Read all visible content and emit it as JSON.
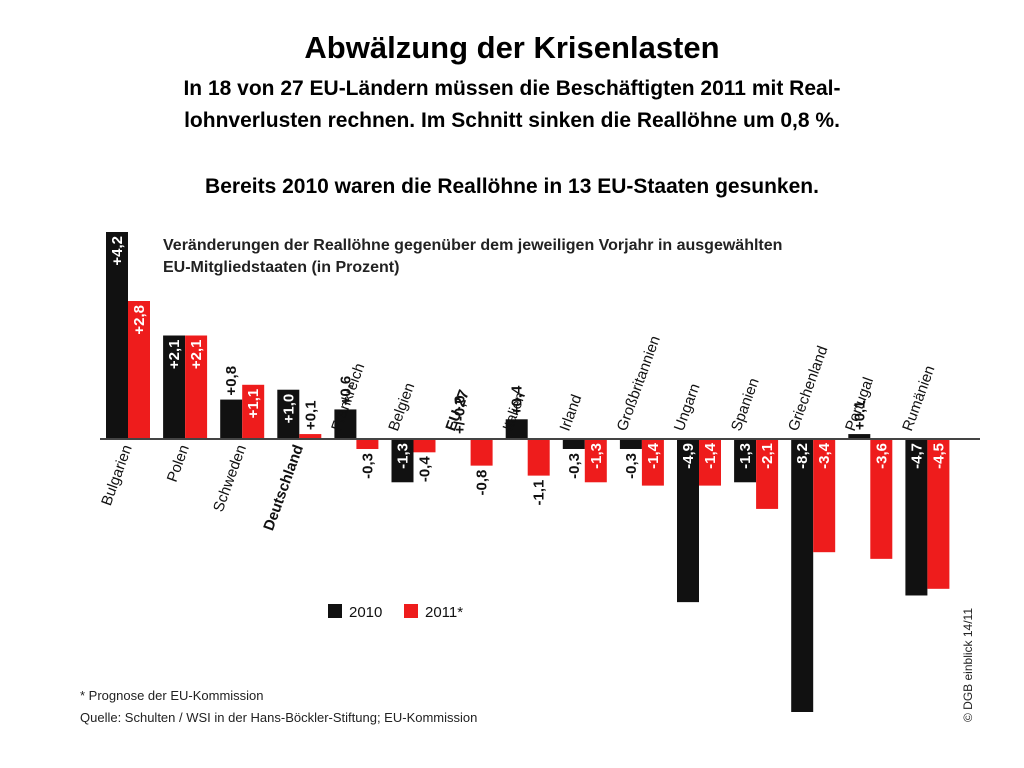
{
  "header": {
    "title": "Abwälzung der Krisenlasten",
    "line1": "In 18 von 27 EU-Ländern müssen die Beschäftigten 2011 mit Real-",
    "line2": "lohnverlusten rechnen. Im Schnitt sinken die Reallöhne um 0,8 %.",
    "line3": "Bereits 2010 waren die Reallöhne in 13 EU-Staaten gesunken."
  },
  "chart_data": {
    "type": "bar",
    "caption_line1": "Veränderungen der Reallöhne gegenüber dem jeweiligen Vorjahr in ausgewählten",
    "caption_line2": "EU-Mitgliedstaaten (in Prozent)",
    "categories": [
      "Bulgarien",
      "Polen",
      "Schweden",
      "Deutschland",
      "Frankreich",
      "Belgien",
      "EU-27",
      "Italien",
      "Irland",
      "Großbritannien",
      "Ungarn",
      "Spanien",
      "Griechenland",
      "Portugal",
      "Rumänien"
    ],
    "series": [
      {
        "name": "2010",
        "color": "#111111",
        "values": [
          4.2,
          2.1,
          0.8,
          1.0,
          0.6,
          -1.3,
          0.0,
          0.4,
          -0.3,
          -0.3,
          -4.9,
          -1.3,
          -8.2,
          0.1,
          -4.7
        ],
        "labels": [
          "+4,2",
          "+2,1",
          "+0,8",
          "+1,0",
          "+0,6",
          "-1,3",
          "+/-0,0",
          "+0,4",
          "-0,3",
          "-0,3",
          "-4,9",
          "-1,3",
          "-8,2",
          "+0,1",
          "-4,7"
        ]
      },
      {
        "name": "2011*",
        "color": "#ee1c1c",
        "values": [
          2.8,
          2.1,
          1.1,
          0.1,
          -0.3,
          -0.4,
          -0.8,
          -1.1,
          -1.3,
          -1.4,
          -1.4,
          -2.1,
          -3.4,
          -3.6,
          -4.5
        ],
        "labels": [
          "+2,8",
          "+2,1",
          "+1,1",
          "+0,1",
          "-0,3",
          "-0,4",
          "-0,8",
          "-1,1",
          "-1,3",
          "-1,4",
          "-1,4",
          "-2,1",
          "-3,4",
          "-3,6",
          "-4,5"
        ]
      }
    ],
    "legend": [
      "2010",
      "2011*"
    ],
    "legend_position": "bottom-left",
    "footnote": "* Prognose der EU-Kommission",
    "source": "Quelle: Schulten / WSI in der Hans-Böckler-Stiftung; EU-Kommission",
    "credit": "© DGB einblick 14/11",
    "ylim": [
      -8.2,
      4.2
    ]
  }
}
